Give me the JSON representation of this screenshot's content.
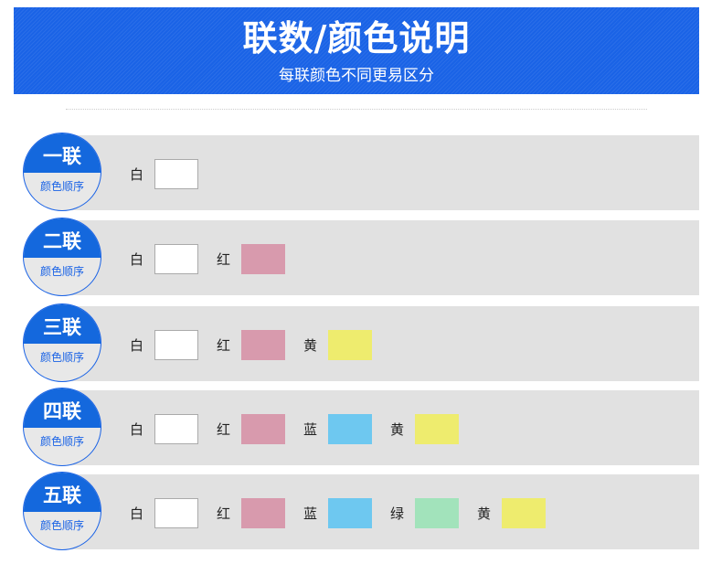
{
  "header": {
    "title": "联数/颜色说明",
    "subtitle": "每联颜色不同更易区分"
  },
  "badge_sub": "颜色顺序",
  "colors": {
    "白": "#ffffff",
    "红": "#d89aad",
    "蓝": "#6ec8f0",
    "绿": "#a2e3bb",
    "黄": "#eeec6e"
  },
  "rows": [
    {
      "title": "一联",
      "items": [
        "白"
      ]
    },
    {
      "title": "二联",
      "items": [
        "白",
        "红"
      ]
    },
    {
      "title": "三联",
      "items": [
        "白",
        "红",
        "黄"
      ]
    },
    {
      "title": "四联",
      "items": [
        "白",
        "红",
        "蓝",
        "黄"
      ]
    },
    {
      "title": "五联",
      "items": [
        "白",
        "红",
        "蓝",
        "绿",
        "黄"
      ]
    }
  ]
}
